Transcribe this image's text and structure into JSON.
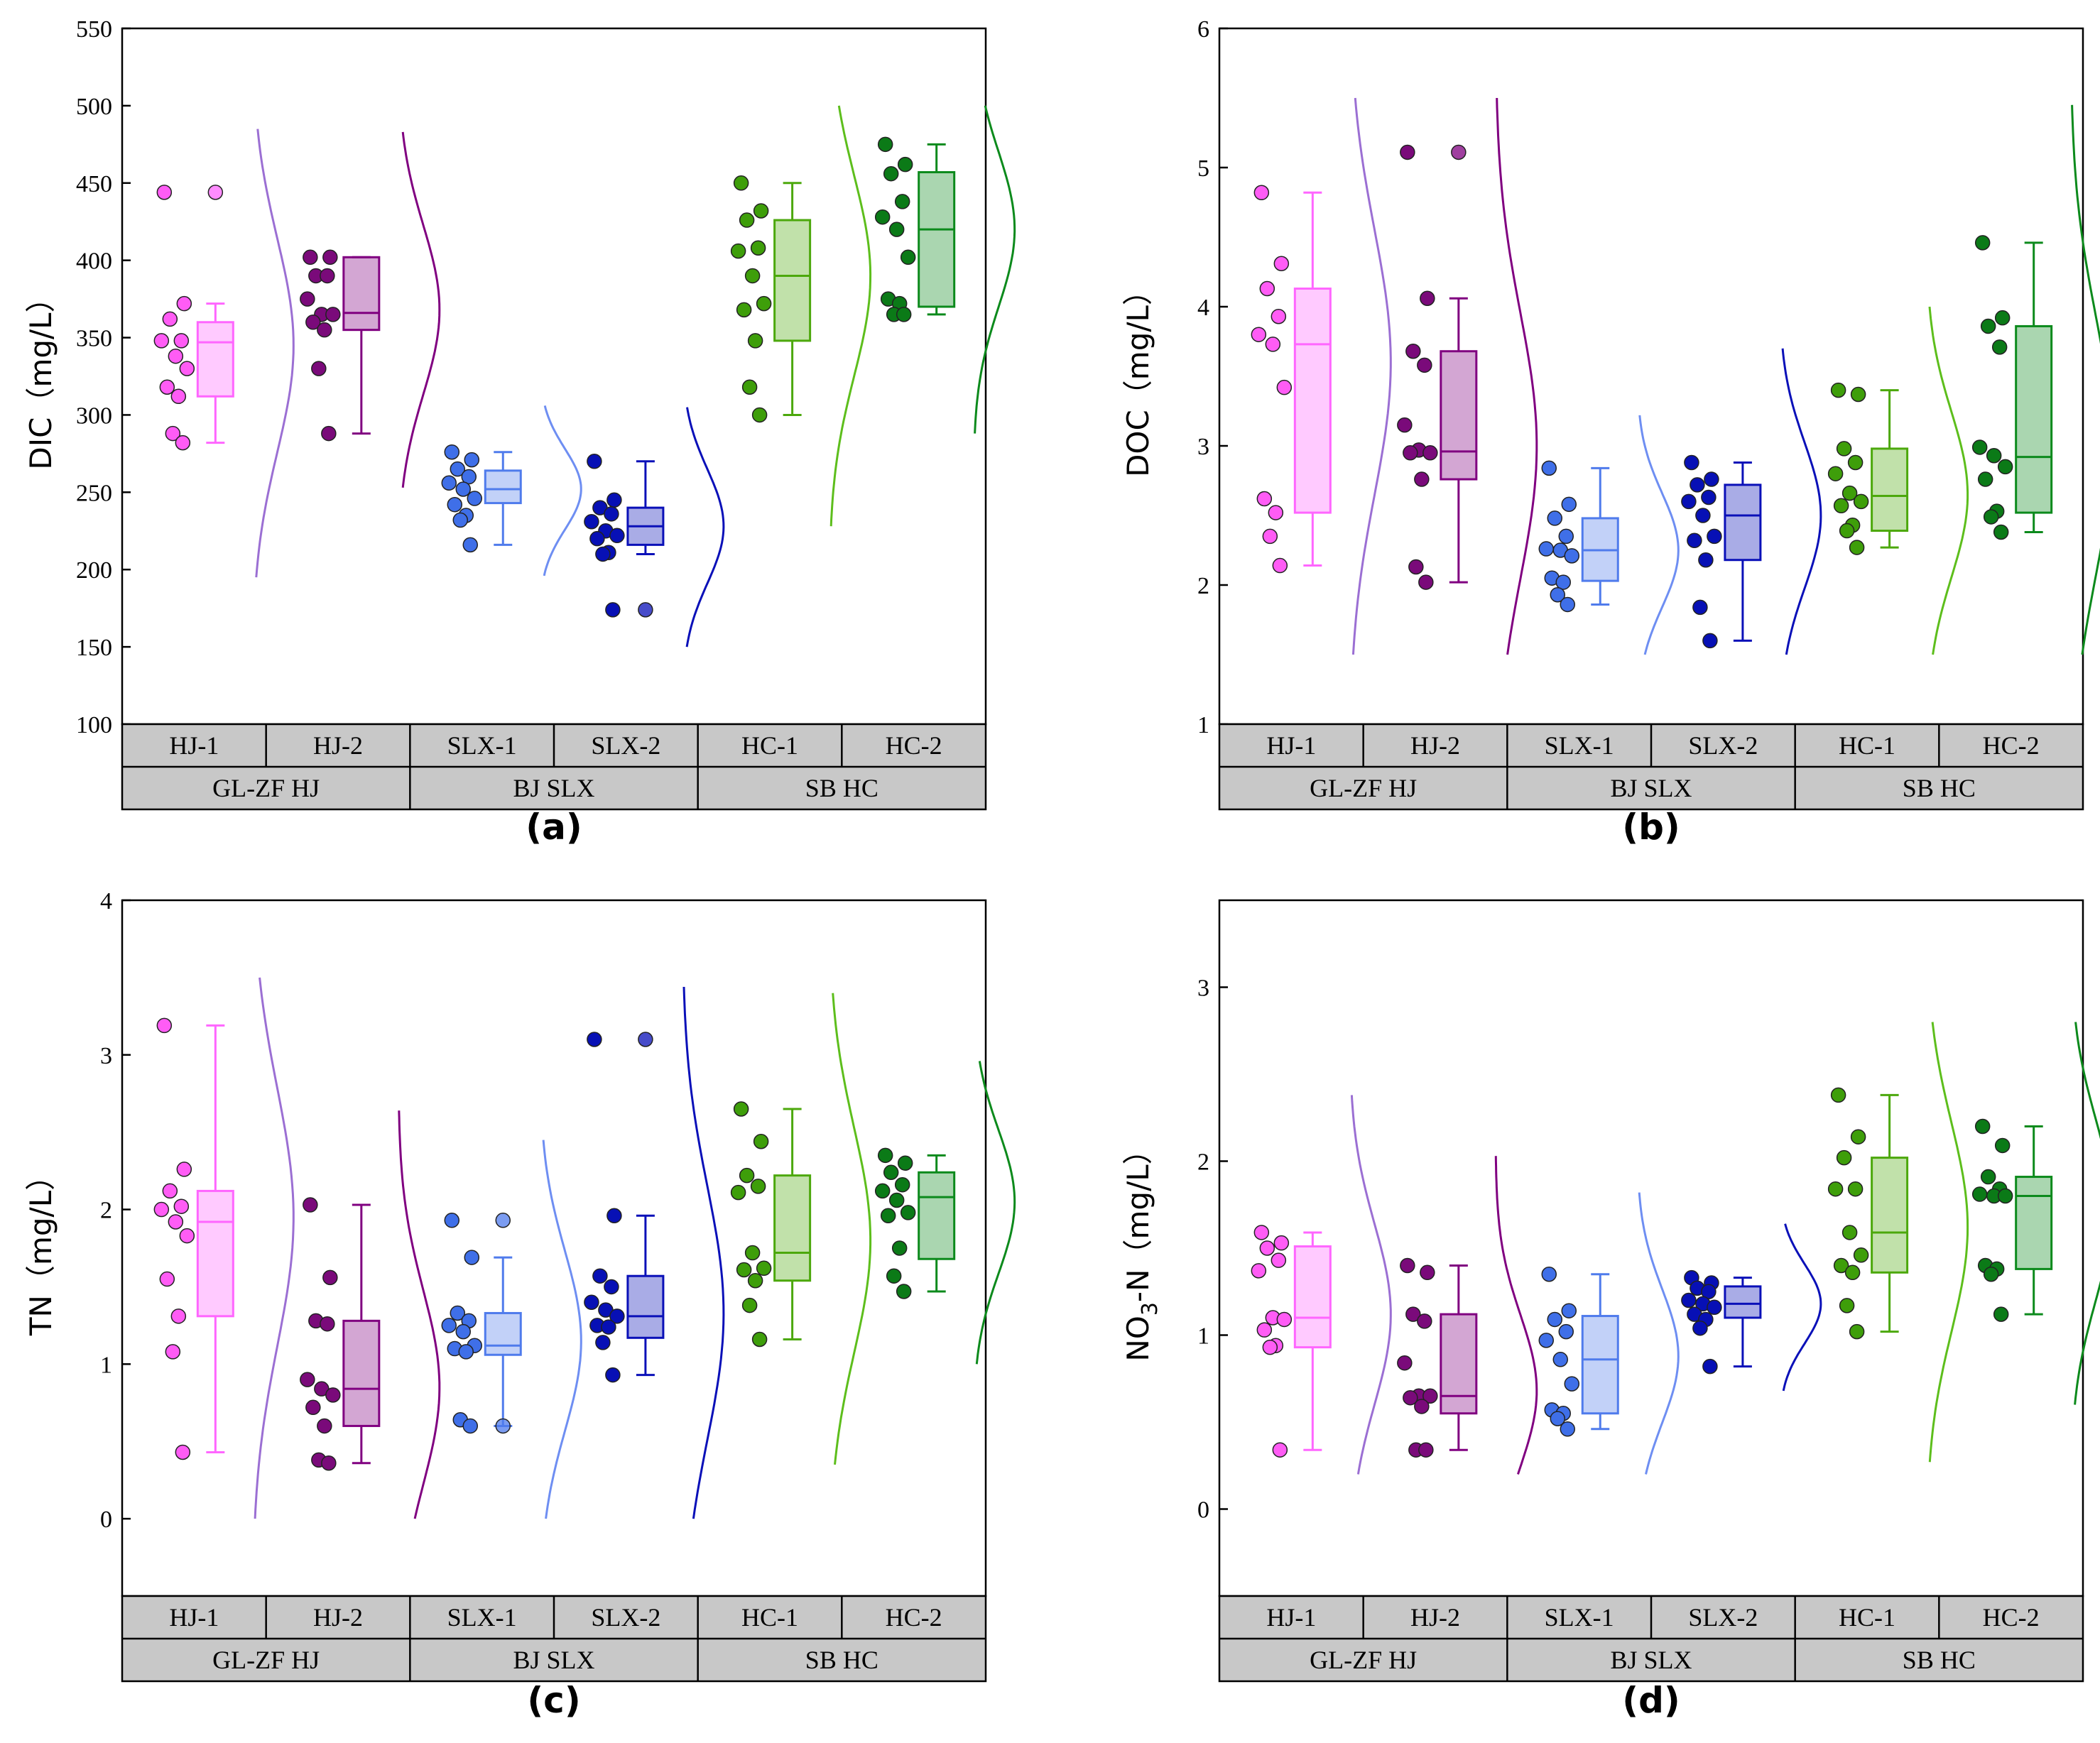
{
  "colors": {
    "HJ-1": "#FF66FF",
    "HJ-2": "#800080",
    "SLX-1": "#4F7BEC",
    "SLX-2": "#0A10B8",
    "HC-1": "#4CA80C",
    "HC-2": "#0C8A1C",
    "HJ-1-curve": "#9B6FD3",
    "SLX-1-curve": "#6E8EF2",
    "HC-1-curve": "#5DBE1C",
    "header_fill": "#C8C8C8"
  },
  "chart_data": [
    {
      "type": "raincloud",
      "panel_label": "(a)",
      "ylabel": "DIC（mg/L）",
      "ylim": [
        100,
        550
      ],
      "yticks": [
        100,
        150,
        200,
        250,
        300,
        350,
        400,
        450,
        500,
        550
      ],
      "categories": [
        "HJ-1",
        "HJ-2",
        "SLX-1",
        "SLX-2",
        "HC-1",
        "HC-2"
      ],
      "group_labels": [
        "GL-ZF HJ",
        "BJ SLX",
        "SB HC"
      ],
      "series": [
        {
          "name": "HJ-1",
          "points": [
            444,
            372,
            362,
            348,
            348,
            338,
            330,
            318,
            312,
            288,
            282
          ],
          "box": {
            "whisker_low": 282,
            "q1": 312,
            "median": 347,
            "q3": 360,
            "whisker_high": 372
          },
          "outlier": 444,
          "curve": {
            "min": 195,
            "max": 485,
            "mode": 345
          }
        },
        {
          "name": "HJ-2",
          "points": [
            402,
            402,
            390,
            390,
            375,
            365,
            365,
            360,
            355,
            330,
            288
          ],
          "box": {
            "whisker_low": 288,
            "q1": 355,
            "median": 366,
            "q3": 402,
            "whisker_high": 402
          },
          "curve": {
            "min": 253,
            "max": 483,
            "mode": 368
          }
        },
        {
          "name": "SLX-1",
          "points": [
            276,
            271,
            265,
            260,
            256,
            252,
            246,
            242,
            235,
            232,
            216
          ],
          "box": {
            "whisker_low": 216,
            "q1": 243,
            "median": 252,
            "q3": 264,
            "whisker_high": 276
          },
          "curve": {
            "min": 196,
            "max": 306,
            "mode": 252
          }
        },
        {
          "name": "SLX-2",
          "points": [
            270,
            245,
            240,
            236,
            231,
            225,
            222,
            220,
            211,
            210,
            174
          ],
          "box": {
            "whisker_low": 210,
            "q1": 216,
            "median": 228,
            "q3": 240,
            "whisker_high": 270
          },
          "outlier": 174,
          "curve": {
            "min": 150,
            "max": 305,
            "mode": 228
          }
        },
        {
          "name": "HC-1",
          "points": [
            450,
            432,
            426,
            408,
            406,
            390,
            372,
            368,
            348,
            318,
            300
          ],
          "box": {
            "whisker_low": 300,
            "q1": 348,
            "median": 390,
            "q3": 426,
            "whisker_high": 450
          },
          "curve": {
            "min": 228,
            "max": 500,
            "mode": 390
          }
        },
        {
          "name": "HC-2",
          "points": [
            475,
            462,
            456,
            438,
            428,
            420,
            402,
            375,
            372,
            365,
            365
          ],
          "box": {
            "whisker_low": 365,
            "q1": 370,
            "median": 420,
            "q3": 457,
            "whisker_high": 475
          },
          "curve": {
            "min": 288,
            "max": 500,
            "mode": 420
          }
        }
      ]
    },
    {
      "type": "raincloud",
      "panel_label": "(b)",
      "ylabel": "DOC（mg/L）",
      "ylim": [
        1,
        6
      ],
      "yticks": [
        1,
        2,
        3,
        4,
        5,
        6
      ],
      "categories": [
        "HJ-1",
        "HJ-2",
        "SLX-1",
        "SLX-2",
        "HC-1",
        "HC-2"
      ],
      "group_labels": [
        "GL-ZF HJ",
        "BJ SLX",
        "SB HC"
      ],
      "series": [
        {
          "name": "HJ-1",
          "points": [
            4.82,
            4.31,
            4.13,
            3.93,
            3.8,
            3.73,
            3.42,
            2.62,
            2.52,
            2.35,
            2.14
          ],
          "box": {
            "whisker_low": 2.14,
            "q1": 2.52,
            "median": 3.73,
            "q3": 4.13,
            "whisker_high": 4.82
          },
          "curve": {
            "min": 1.5,
            "max": 5.5,
            "mode": 3.6
          }
        },
        {
          "name": "HJ-2",
          "points": [
            5.11,
            4.06,
            3.68,
            3.58,
            3.15,
            2.97,
            2.95,
            2.95,
            2.76,
            2.13,
            2.02
          ],
          "box": {
            "whisker_low": 2.02,
            "q1": 2.76,
            "median": 2.96,
            "q3": 3.68,
            "whisker_high": 4.06
          },
          "outlier": 5.11,
          "curve": {
            "min": 1.5,
            "max": 5.5,
            "mode": 3.0
          }
        },
        {
          "name": "SLX-1",
          "points": [
            2.84,
            2.58,
            2.48,
            2.35,
            2.26,
            2.25,
            2.21,
            2.05,
            2.02,
            1.93,
            1.86
          ],
          "box": {
            "whisker_low": 1.86,
            "q1": 2.03,
            "median": 2.25,
            "q3": 2.48,
            "whisker_high": 2.84
          },
          "curve": {
            "min": 1.5,
            "max": 3.22,
            "mode": 2.25
          }
        },
        {
          "name": "SLX-2",
          "points": [
            2.88,
            2.76,
            2.72,
            2.63,
            2.6,
            2.5,
            2.35,
            2.32,
            2.18,
            1.84,
            1.6
          ],
          "box": {
            "whisker_low": 1.6,
            "q1": 2.18,
            "median": 2.5,
            "q3": 2.72,
            "whisker_high": 2.88
          },
          "curve": {
            "min": 1.5,
            "max": 3.7,
            "mode": 2.5
          }
        },
        {
          "name": "HC-1",
          "points": [
            3.4,
            3.37,
            2.98,
            2.88,
            2.8,
            2.66,
            2.6,
            2.57,
            2.43,
            2.39,
            2.27
          ],
          "box": {
            "whisker_low": 2.27,
            "q1": 2.39,
            "median": 2.64,
            "q3": 2.98,
            "whisker_high": 3.4
          },
          "curve": {
            "min": 1.5,
            "max": 4.0,
            "mode": 2.65
          }
        },
        {
          "name": "HC-2",
          "points": [
            4.46,
            3.92,
            3.86,
            3.71,
            2.99,
            2.93,
            2.85,
            2.76,
            2.53,
            2.49,
            2.38
          ],
          "box": {
            "whisker_low": 2.38,
            "q1": 2.52,
            "median": 2.92,
            "q3": 3.86,
            "whisker_high": 4.46
          },
          "curve": {
            "min": 1.5,
            "max": 5.45,
            "mode": 3.0
          }
        }
      ]
    },
    {
      "type": "raincloud",
      "panel_label": "(c)",
      "ylabel": "TN（mg/L）",
      "ylim": [
        -0.5,
        4
      ],
      "yticks": [
        0,
        1,
        2,
        3,
        4
      ],
      "categories": [
        "HJ-1",
        "HJ-2",
        "SLX-1",
        "SLX-2",
        "HC-1",
        "HC-2"
      ],
      "group_labels": [
        "GL-ZF HJ",
        "BJ SLX",
        "SB HC"
      ],
      "series": [
        {
          "name": "HJ-1",
          "points": [
            3.19,
            2.26,
            2.12,
            2.02,
            2.0,
            1.92,
            1.83,
            1.55,
            1.31,
            1.08,
            0.43
          ],
          "box": {
            "whisker_low": 0.43,
            "q1": 1.31,
            "median": 1.92,
            "q3": 2.12,
            "whisker_high": 3.19
          },
          "curve": {
            "min": 0.0,
            "max": 3.5,
            "mode": 1.95
          }
        },
        {
          "name": "HJ-2",
          "points": [
            2.03,
            1.56,
            1.28,
            1.26,
            0.9,
            0.84,
            0.8,
            0.72,
            0.6,
            0.38,
            0.36
          ],
          "box": {
            "whisker_low": 0.36,
            "q1": 0.6,
            "median": 0.84,
            "q3": 1.28,
            "whisker_high": 2.03
          },
          "curve": {
            "min": 0.0,
            "max": 2.64,
            "mode": 0.85
          }
        },
        {
          "name": "SLX-1",
          "points": [
            1.93,
            1.69,
            1.33,
            1.28,
            1.25,
            1.21,
            1.12,
            1.1,
            1.08,
            0.64,
            0.6
          ],
          "box": {
            "whisker_low": 0.6,
            "q1": 1.06,
            "median": 1.12,
            "q3": 1.33,
            "whisker_high": 1.69
          },
          "outliers": [
            1.93,
            0.6
          ],
          "curve": {
            "min": 0.0,
            "max": 2.45,
            "mode": 1.15
          }
        },
        {
          "name": "SLX-2",
          "points": [
            3.1,
            1.96,
            1.57,
            1.5,
            1.4,
            1.35,
            1.31,
            1.25,
            1.24,
            1.14,
            0.93
          ],
          "box": {
            "whisker_low": 0.93,
            "q1": 1.17,
            "median": 1.31,
            "q3": 1.57,
            "whisker_high": 1.96
          },
          "outlier": 3.1,
          "curve": {
            "min": 0.0,
            "max": 3.44,
            "mode": 1.33
          }
        },
        {
          "name": "HC-1",
          "points": [
            2.65,
            2.44,
            2.22,
            2.15,
            2.11,
            1.72,
            1.62,
            1.61,
            1.54,
            1.38,
            1.16
          ],
          "box": {
            "whisker_low": 1.16,
            "q1": 1.54,
            "median": 1.72,
            "q3": 2.22,
            "whisker_high": 2.65
          },
          "curve": {
            "min": 0.35,
            "max": 3.4,
            "mode": 1.8
          }
        },
        {
          "name": "HC-2",
          "points": [
            2.35,
            2.3,
            2.24,
            2.16,
            2.12,
            2.06,
            1.98,
            1.96,
            1.75,
            1.57,
            1.47
          ],
          "box": {
            "whisker_low": 1.47,
            "q1": 1.68,
            "median": 2.08,
            "q3": 2.24,
            "whisker_high": 2.35
          },
          "curve": {
            "min": 1.0,
            "max": 2.96,
            "mode": 2.05
          }
        }
      ]
    },
    {
      "type": "raincloud",
      "panel_label": "(d)",
      "ylabel": "NO₃-N（mg/L）",
      "ylim": [
        -0.5,
        3.5
      ],
      "yticks": [
        0,
        1,
        2,
        3
      ],
      "categories": [
        "HJ-1",
        "HJ-2",
        "SLX-1",
        "SLX-2",
        "HC-1",
        "HC-2"
      ],
      "group_labels": [
        "GL-ZF HJ",
        "BJ SLX",
        "SB HC"
      ],
      "series": [
        {
          "name": "HJ-1",
          "points": [
            1.59,
            1.53,
            1.5,
            1.43,
            1.37,
            1.1,
            1.09,
            1.03,
            0.94,
            0.93,
            0.34
          ],
          "box": {
            "whisker_low": 0.34,
            "q1": 0.93,
            "median": 1.1,
            "q3": 1.51,
            "whisker_high": 1.59
          },
          "curve": {
            "min": 0.2,
            "max": 2.38,
            "mode": 1.12
          }
        },
        {
          "name": "HJ-2",
          "points": [
            1.4,
            1.36,
            1.12,
            1.08,
            0.84,
            0.65,
            0.65,
            0.64,
            0.59,
            0.34,
            0.34
          ],
          "box": {
            "whisker_low": 0.34,
            "q1": 0.55,
            "median": 0.65,
            "q3": 1.12,
            "whisker_high": 1.4
          },
          "curve": {
            "min": 0.2,
            "max": 2.03,
            "mode": 0.68
          }
        },
        {
          "name": "SLX-1",
          "points": [
            1.35,
            1.14,
            1.09,
            1.02,
            0.97,
            0.86,
            0.72,
            0.57,
            0.55,
            0.52,
            0.46
          ],
          "box": {
            "whisker_low": 0.46,
            "q1": 0.55,
            "median": 0.86,
            "q3": 1.11,
            "whisker_high": 1.35
          },
          "curve": {
            "min": 0.2,
            "max": 1.82,
            "mode": 0.88
          }
        },
        {
          "name": "SLX-2",
          "points": [
            1.33,
            1.3,
            1.27,
            1.25,
            1.2,
            1.18,
            1.16,
            1.12,
            1.09,
            1.04,
            0.82
          ],
          "box": {
            "whisker_low": 0.82,
            "q1": 1.1,
            "median": 1.18,
            "q3": 1.28,
            "whisker_high": 1.33
          },
          "curve": {
            "min": 0.68,
            "max": 1.64,
            "mode": 1.18
          }
        },
        {
          "name": "HC-1",
          "points": [
            2.38,
            2.14,
            2.02,
            1.84,
            1.84,
            1.59,
            1.46,
            1.4,
            1.36,
            1.17,
            1.02
          ],
          "box": {
            "whisker_low": 1.02,
            "q1": 1.36,
            "median": 1.59,
            "q3": 2.02,
            "whisker_high": 2.38
          },
          "curve": {
            "min": 0.27,
            "max": 2.8,
            "mode": 1.62
          }
        },
        {
          "name": "HC-2",
          "points": [
            2.2,
            2.09,
            1.91,
            1.84,
            1.81,
            1.8,
            1.8,
            1.4,
            1.38,
            1.35,
            1.12
          ],
          "box": {
            "whisker_low": 1.12,
            "q1": 1.38,
            "median": 1.8,
            "q3": 1.91,
            "whisker_high": 2.2
          },
          "curve": {
            "min": 0.6,
            "max": 2.8,
            "mode": 1.72
          }
        }
      ]
    }
  ]
}
